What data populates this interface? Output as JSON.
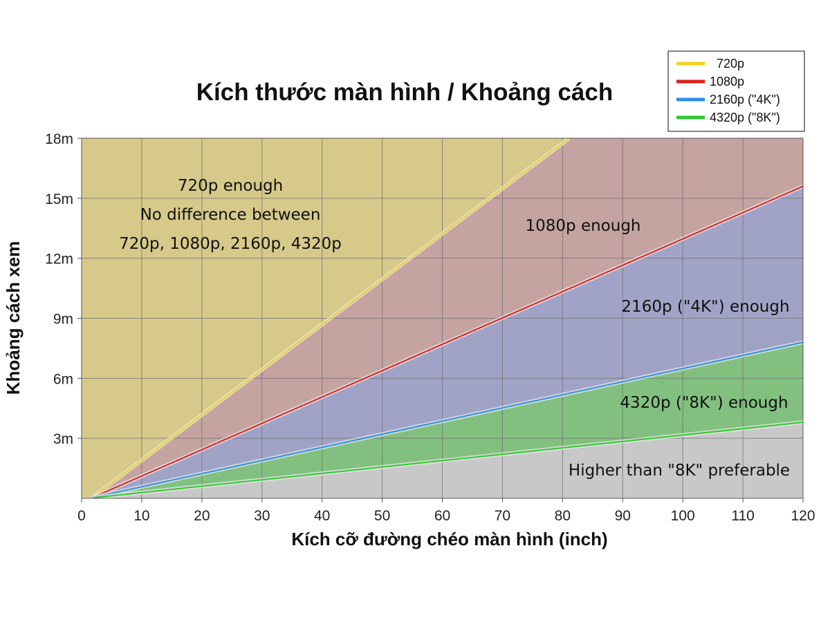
{
  "chart_data": {
    "type": "area",
    "title": "Kích thước màn hình / Khoảng cách",
    "xlabel": "Kích cỡ đường chéo màn hình (inch)",
    "ylabel": "Khoảng cách xem",
    "xlim": [
      0,
      120
    ],
    "ylim": [
      0,
      18
    ],
    "x_ticks": [
      "0",
      "10",
      "20",
      "30",
      "40",
      "50",
      "60",
      "70",
      "80",
      "90",
      "100",
      "110",
      "120"
    ],
    "y_ticks": [
      "3m",
      "6m",
      "9m",
      "12m",
      "15m",
      "18m"
    ],
    "grid": true,
    "legend_position": "top-right",
    "series": [
      {
        "name": "720p",
        "color": "#f2d21e",
        "x": [
          2,
          82
        ],
        "y": [
          0.09,
          18.2
        ]
      },
      {
        "name": "1080p",
        "color": "#e02020",
        "x": [
          2,
          120
        ],
        "y": [
          0.06,
          15.6
        ]
      },
      {
        "name": "2160p (\"4K\")",
        "color": "#2e8fe8",
        "x": [
          2,
          120
        ],
        "y": [
          0.05,
          7.8
        ]
      },
      {
        "name": "4320p (\"8K\")",
        "color": "#2ec82e",
        "x": [
          2,
          120
        ],
        "y": [
          0.03,
          3.8
        ]
      }
    ],
    "regions": [
      {
        "key": "r720",
        "color": "#d6c98a",
        "lines": [
          "720p enough",
          "No difference between",
          "720p, 1080p, 2160p, 4320p"
        ]
      },
      {
        "key": "r1080",
        "color": "#c4a3a0",
        "lines": [
          "1080p enough"
        ]
      },
      {
        "key": "r2160",
        "color": "#a1a3c6",
        "lines": [
          "2160p (\"4K\") enough"
        ]
      },
      {
        "key": "r4320",
        "color": "#82c07f",
        "lines": [
          "4320p (\"8K\") enough"
        ]
      },
      {
        "key": "rhigh",
        "color": "#c8c8c8",
        "lines": [
          "Higher than \"8K\" preferable"
        ]
      }
    ]
  }
}
